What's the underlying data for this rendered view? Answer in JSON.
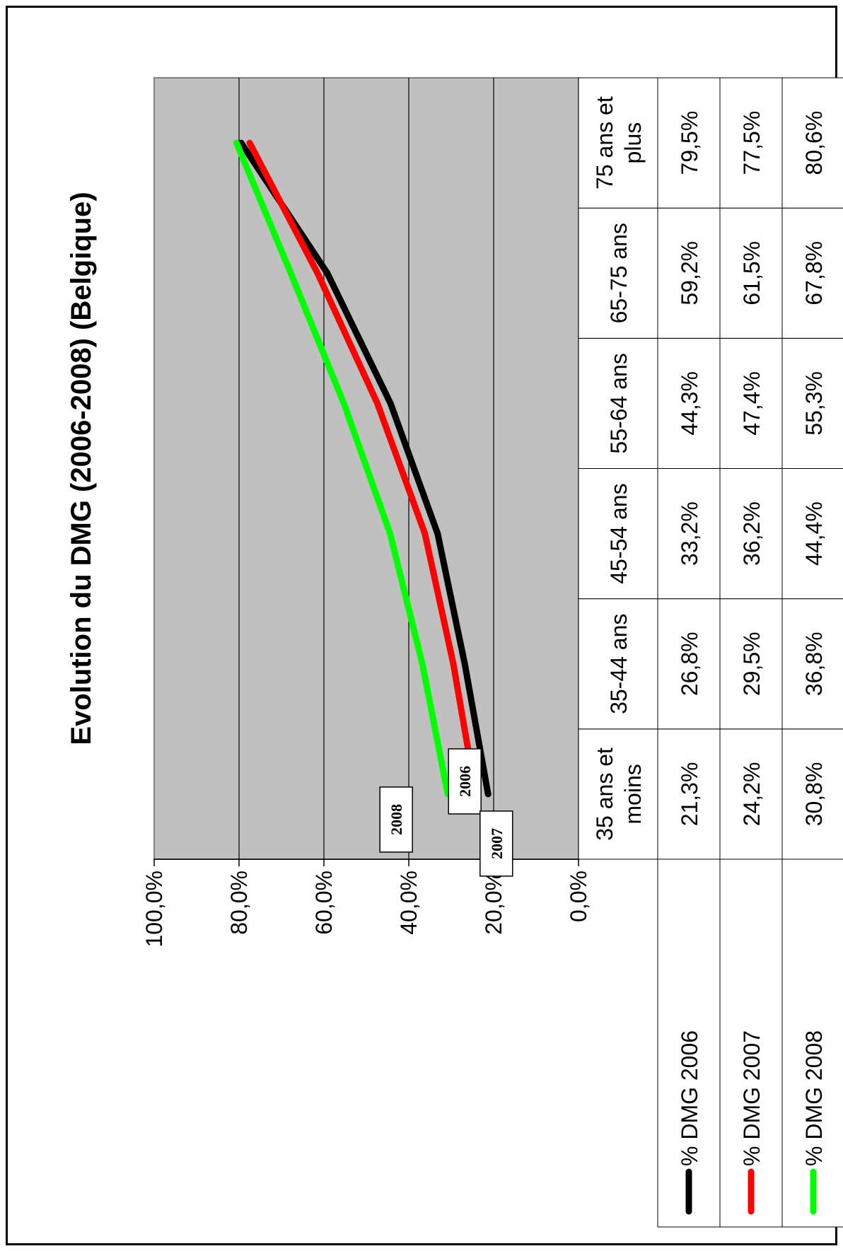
{
  "chart_data": {
    "type": "line",
    "title": "Evolution du DMG (2006-2008) (Belgique)",
    "categories": [
      "35 ans et moins",
      "35-44 ans",
      "45-54 ans",
      "55-64 ans",
      "65-75 ans",
      "75 ans et plus"
    ],
    "category_lines": [
      [
        "35 ans et",
        "moins"
      ],
      [
        "35-44 ans"
      ],
      [
        "45-54 ans"
      ],
      [
        "55-64 ans"
      ],
      [
        "65-75 ans"
      ],
      [
        "75 ans et",
        "plus"
      ]
    ],
    "series": [
      {
        "name": "% DMG 2006",
        "color": "#000000",
        "values": [
          21.3,
          26.8,
          33.2,
          44.3,
          59.2,
          79.5
        ],
        "labels": [
          "21,3%",
          "26,8%",
          "33,2%",
          "44,3%",
          "59,2%",
          "79,5%"
        ],
        "callout": "2006"
      },
      {
        "name": "% DMG 2007",
        "color": "#ff0000",
        "values": [
          24.2,
          29.5,
          36.2,
          47.4,
          61.5,
          77.5
        ],
        "labels": [
          "24,2%",
          "29,5%",
          "36,2%",
          "47,4%",
          "61,5%",
          "77,5%"
        ],
        "callout": "2007"
      },
      {
        "name": "% DMG 2008",
        "color": "#00ff00",
        "values": [
          30.8,
          36.8,
          44.4,
          55.3,
          67.8,
          80.6
        ],
        "labels": [
          "30,8%",
          "36,8%",
          "44,4%",
          "55,3%",
          "67,8%",
          "80,6%"
        ],
        "callout": "2008"
      }
    ],
    "ylim": [
      0,
      100
    ],
    "yticks": [
      0,
      20,
      40,
      60,
      80,
      100
    ],
    "ytick_labels": [
      "0,0%",
      "20,0%",
      "40,0%",
      "60,0%",
      "80,0%",
      "100,0%"
    ],
    "grid": true,
    "plot_background": "#c0c0c0",
    "orientation": "rotated-90-ccw",
    "data_table": true
  }
}
